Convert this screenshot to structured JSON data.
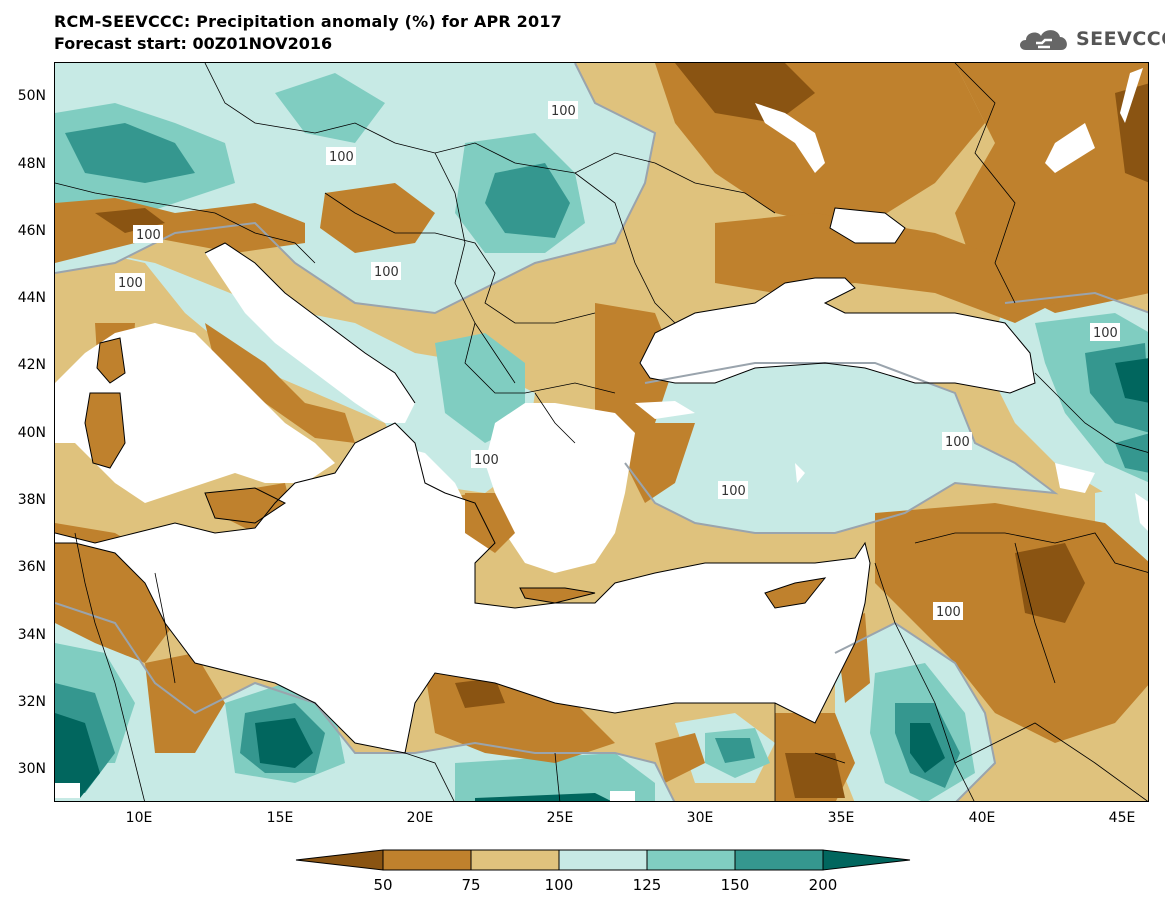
{
  "header": {
    "title": "RCM-SEEVCCC: Precipitation anomaly (%) for APR 2017",
    "subtitle": "Forecast start: 00Z01NOV2016"
  },
  "logo": {
    "text": "SEEVCCC",
    "icon": "cloud-logo-icon"
  },
  "map": {
    "variable": "Precipitation anomaly",
    "units": "%",
    "latitude_labels": [
      "50N",
      "48N",
      "46N",
      "44N",
      "42N",
      "40N",
      "38N",
      "36N",
      "34N",
      "32N",
      "30N"
    ],
    "longitude_labels": [
      "10E",
      "15E",
      "20E",
      "25E",
      "30E",
      "35E",
      "40E",
      "45E"
    ],
    "contour_labels": [
      "100",
      "100",
      "100",
      "100",
      "100",
      "100",
      "100",
      "100",
      "100",
      "100"
    ],
    "colors": {
      "below_50": "#8a5412",
      "50_75": "#bf812d",
      "75_100": "#dfc27d",
      "100_125": "#c7eae5",
      "125_150": "#80cdc1",
      "150_200": "#35978f",
      "above_200": "#01665e",
      "sea": "#ffffff"
    }
  },
  "colorbar": {
    "labels": [
      "50",
      "75",
      "100",
      "125",
      "150",
      "200"
    ],
    "colors": [
      "#8a5412",
      "#bf812d",
      "#dfc27d",
      "#c7eae5",
      "#80cdc1",
      "#35978f",
      "#01665e"
    ]
  }
}
